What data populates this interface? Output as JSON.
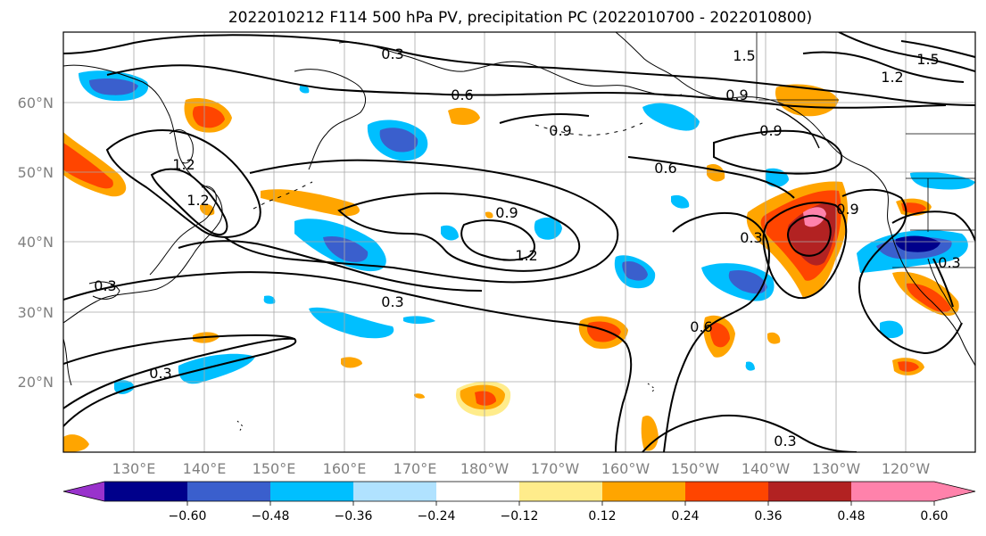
{
  "title": "2022010212 F114 500 hPa PV, precipitation PC (2022010700 - 2022010800)",
  "map": {
    "lat_labels": [
      "60°N",
      "50°N",
      "40°N",
      "30°N",
      "20°N"
    ],
    "lon_labels": [
      "130°E",
      "140°E",
      "150°E",
      "160°E",
      "170°E",
      "180°W",
      "170°W",
      "160°W",
      "150°W",
      "140°W",
      "130°W",
      "120°W"
    ],
    "pv_contour_levels": [
      "0.3",
      "0.6",
      "0.9",
      "1.2",
      "1.5"
    ]
  },
  "colorbar": {
    "ticks": [
      "−0.60",
      "−0.48",
      "−0.36",
      "−0.24",
      "−0.12",
      "0.12",
      "0.24",
      "0.36",
      "0.48",
      "0.60"
    ],
    "colors": [
      "#9932cc",
      "#00008b",
      "#3a5fcd",
      "#00bfff",
      "#b0e2ff",
      "#ffffff",
      "#ffec8b",
      "#ffa500",
      "#ff4500",
      "#b22222",
      "#ff82ab",
      "#ff82ab"
    ],
    "extend": "both"
  }
}
